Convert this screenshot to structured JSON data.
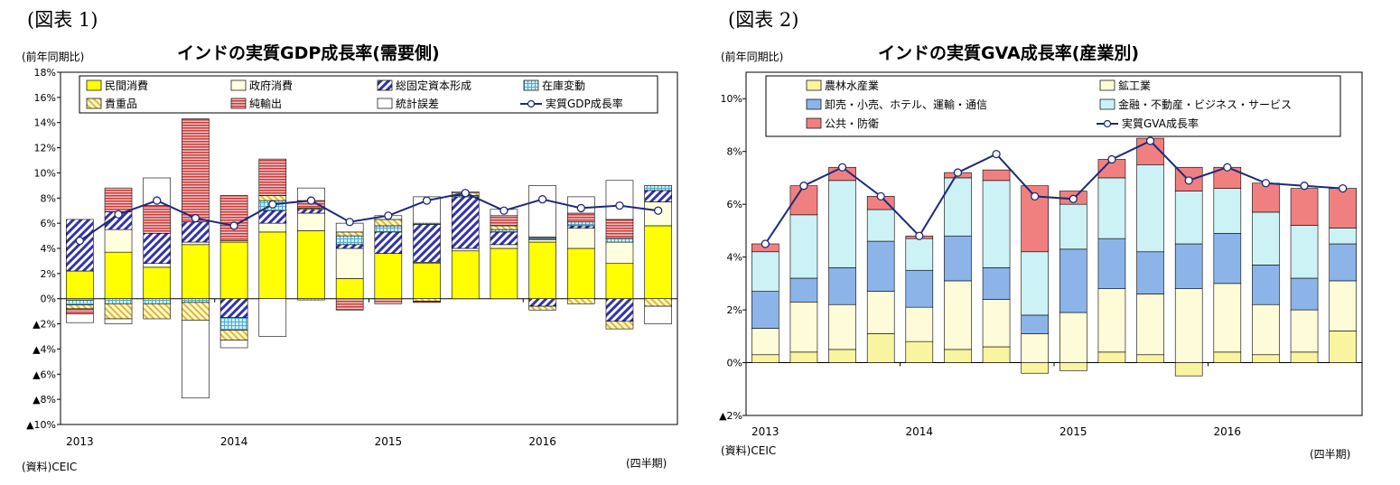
{
  "chart_data": [
    {
      "type": "bar",
      "figure_label": "(図表 1)",
      "title": "インドの実質GDP成長率(需要側)",
      "ylabel": "(前年同期比)",
      "xlabel": "(四半期)",
      "source": "(資料)CEIC",
      "ylim": [
        -10,
        18
      ],
      "yticks": [
        -10,
        -8,
        -6,
        -4,
        -2,
        0,
        2,
        4,
        6,
        8,
        10,
        12,
        14,
        16,
        18
      ],
      "ytick_labels": [
        "▲10%",
        "▲8%",
        "▲6%",
        "▲4%",
        "▲2%",
        "0%",
        "2%",
        "4%",
        "6%",
        "8%",
        "10%",
        "12%",
        "14%",
        "16%",
        "18%"
      ],
      "x_year_labels": [
        {
          "label": "2013",
          "index": 0
        },
        {
          "label": "2014",
          "index": 4
        },
        {
          "label": "2015",
          "index": 8
        },
        {
          "label": "2016",
          "index": 12
        }
      ],
      "n": 16,
      "series": [
        {
          "name": "民間消費",
          "color": "#ffff00",
          "values": [
            2.2,
            3.7,
            2.5,
            4.3,
            4.5,
            5.3,
            5.4,
            1.6,
            3.6,
            2.8,
            3.8,
            4.0,
            4.5,
            4.0,
            2.8,
            5.8
          ]
        },
        {
          "name": "政府消費",
          "color": "#ffffe0",
          "values": [
            -0.1,
            1.8,
            0.3,
            0.2,
            0.1,
            0.7,
            1.4,
            2.4,
            0.0,
            0.1,
            0.2,
            0.3,
            0.2,
            1.6,
            1.7,
            1.9
          ]
        },
        {
          "name": "総固定資本形成",
          "color": "#3333aa",
          "pattern": "diag",
          "values": [
            4.1,
            1.4,
            2.4,
            1.6,
            -1.5,
            1.0,
            0.3,
            0.3,
            1.7,
            3.0,
            4.1,
            1.0,
            -0.6,
            0.2,
            -1.8,
            0.9
          ]
        },
        {
          "name": "在庫変動",
          "color": "#66ccee",
          "pattern": "grid",
          "values": [
            -0.4,
            -0.4,
            -0.4,
            -0.3,
            -1.0,
            0.8,
            -0.1,
            0.7,
            0.5,
            0.1,
            0.1,
            0.2,
            0.1,
            0.3,
            0.3,
            0.4
          ]
        },
        {
          "name": "貴重品",
          "color": "#e8c830",
          "pattern": "diag2",
          "values": [
            -0.3,
            -1.2,
            -1.2,
            -1.4,
            -0.8,
            0.4,
            0.1,
            0.3,
            0.5,
            -0.2,
            0.2,
            0.3,
            -0.3,
            -0.4,
            -0.6,
            -0.6
          ]
        },
        {
          "name": "純輸出",
          "color": "#cc4444",
          "pattern": "hlines",
          "values": [
            -0.4,
            1.9,
            2.2,
            8.2,
            3.6,
            2.9,
            0.6,
            -0.9,
            -0.4,
            -0.1,
            0.0,
            0.8,
            0.1,
            0.7,
            1.5,
            0.0
          ]
        },
        {
          "name": "統計誤差",
          "color": "#ffffff",
          "values": [
            -0.7,
            -0.4,
            2.2,
            -6.2,
            -0.6,
            -3.0,
            1.0,
            0.7,
            0.3,
            2.1,
            0.1,
            0.5,
            4.1,
            1.3,
            3.1,
            -1.4
          ]
        }
      ],
      "line": {
        "name": "実質GDP成長率",
        "color": "#1f2a78",
        "values": [
          4.6,
          6.7,
          7.8,
          6.4,
          5.8,
          7.5,
          7.8,
          6.1,
          6.6,
          7.8,
          8.4,
          7.0,
          7.9,
          7.2,
          7.4,
          7.0
        ]
      }
    },
    {
      "type": "bar",
      "figure_label": "(図表 2)",
      "title": "インドの実質GVA成長率(産業別)",
      "ylabel": "(前年同期比)",
      "xlabel": "(四半期)",
      "source": "(資料)CEIC",
      "ylim": [
        -2,
        11
      ],
      "yticks": [
        -2,
        0,
        2,
        4,
        6,
        8,
        10
      ],
      "ytick_labels": [
        "▲2%",
        "0%",
        "2%",
        "4%",
        "6%",
        "8%",
        "10%"
      ],
      "x_year_labels": [
        {
          "label": "2013",
          "index": 0
        },
        {
          "label": "2014",
          "index": 4
        },
        {
          "label": "2015",
          "index": 8
        },
        {
          "label": "2016",
          "index": 12
        }
      ],
      "n": 16,
      "series": [
        {
          "name": "農林水産業",
          "color": "#f8f4a0",
          "values": [
            0.3,
            0.4,
            0.5,
            1.1,
            0.8,
            0.5,
            0.6,
            -0.4,
            -0.3,
            0.4,
            0.3,
            -0.5,
            0.4,
            0.3,
            0.4,
            1.2
          ]
        },
        {
          "name": "鉱工業",
          "color": "#fdfbd8",
          "values": [
            1.0,
            1.9,
            1.7,
            1.6,
            1.3,
            2.6,
            1.8,
            1.1,
            1.9,
            2.4,
            2.3,
            2.8,
            2.6,
            1.9,
            1.6,
            1.9
          ]
        },
        {
          "name": "卸売・小売、ホテル、運輸・通信",
          "color": "#8cb4e8",
          "values": [
            1.4,
            0.9,
            1.4,
            1.9,
            1.4,
            1.7,
            1.2,
            0.7,
            2.4,
            1.9,
            1.6,
            1.7,
            1.9,
            1.5,
            1.2,
            1.4
          ]
        },
        {
          "name": "金融・不動産・ビジネス・サービス",
          "color": "#cdf2f6",
          "values": [
            1.5,
            2.4,
            3.3,
            1.2,
            1.2,
            2.2,
            3.3,
            2.4,
            1.7,
            2.3,
            3.3,
            2.0,
            1.7,
            2.0,
            2.0,
            0.6
          ]
        },
        {
          "name": "公共・防衛",
          "color": "#f08080",
          "values": [
            0.3,
            1.1,
            0.5,
            0.5,
            0.1,
            0.2,
            0.4,
            2.5,
            0.5,
            0.7,
            1.0,
            0.9,
            0.8,
            1.1,
            1.4,
            1.5
          ]
        }
      ],
      "line": {
        "name": "実質GVA成長率",
        "color": "#1f2a78",
        "values": [
          4.5,
          6.7,
          7.4,
          6.3,
          4.8,
          7.2,
          7.9,
          6.3,
          6.2,
          7.7,
          8.4,
          6.9,
          7.4,
          6.8,
          6.7,
          6.6
        ]
      }
    }
  ]
}
